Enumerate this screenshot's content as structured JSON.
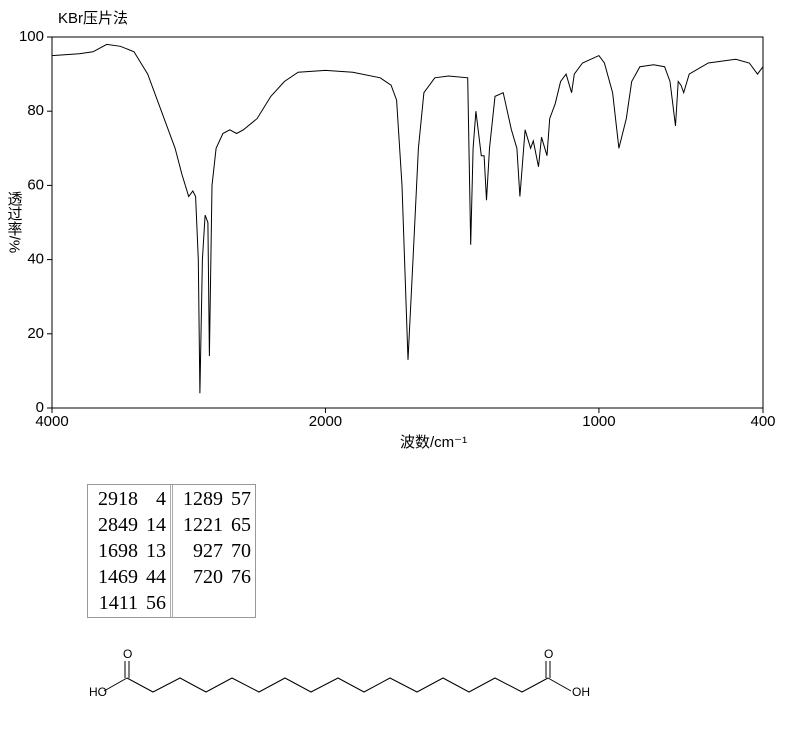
{
  "chart_data": {
    "type": "line",
    "title": "KBr压片法",
    "x_label": "波数/cm⁻¹",
    "y_label": "透过率/%",
    "x": [
      4000,
      3800,
      3700,
      3600,
      3500,
      3400,
      3300,
      3200,
      3100,
      3050,
      3000,
      2970,
      2950,
      2930,
      2918,
      2900,
      2880,
      2860,
      2849,
      2830,
      2800,
      2750,
      2700,
      2650,
      2600,
      2500,
      2400,
      2300,
      2200,
      2000,
      1900,
      1800,
      1760,
      1740,
      1720,
      1698,
      1680,
      1660,
      1640,
      1600,
      1550,
      1480,
      1469,
      1460,
      1450,
      1430,
      1420,
      1411,
      1400,
      1380,
      1350,
      1320,
      1300,
      1289,
      1270,
      1250,
      1240,
      1221,
      1210,
      1190,
      1180,
      1160,
      1140,
      1120,
      1100,
      1090,
      1060,
      1000,
      980,
      950,
      927,
      900,
      880,
      850,
      800,
      760,
      740,
      720,
      710,
      700,
      690,
      670,
      600,
      500,
      450,
      420,
      400
    ],
    "series": [
      {
        "name": "spectrum",
        "color": "#000000",
        "values": [
          95,
          95.5,
          96,
          98,
          97.5,
          96,
          90,
          80,
          70,
          63,
          57,
          58.5,
          57,
          40,
          4,
          40,
          52,
          50,
          14,
          60,
          70,
          74,
          75,
          74,
          75,
          78,
          84,
          88,
          90.5,
          91,
          90.5,
          89,
          87,
          83,
          60,
          13,
          40,
          70,
          85,
          89,
          89.5,
          89,
          44,
          70,
          80,
          68,
          68,
          56,
          70,
          84,
          85,
          75,
          70,
          57,
          75,
          70,
          72,
          65,
          73,
          68,
          78,
          82,
          88,
          90,
          85,
          90,
          93,
          95,
          93,
          85,
          70,
          78,
          88,
          92,
          92.5,
          92,
          88,
          76,
          88,
          87,
          85,
          90,
          93,
          94,
          93,
          90,
          92
        ]
      }
    ],
    "xlim": [
      4000,
      400
    ],
    "xticks": [
      4000,
      2000,
      1000,
      400
    ],
    "x_scale_break": 2000,
    "x_scale_factor": 2,
    "ylim": [
      0,
      100
    ],
    "yticks": [
      0,
      20,
      40,
      60,
      80,
      100
    ]
  },
  "peak_table": {
    "rows": [
      [
        2918,
        4
      ],
      [
        2849,
        14
      ],
      [
        1698,
        13
      ],
      [
        1469,
        44
      ],
      [
        1411,
        56
      ],
      [
        1289,
        57
      ],
      [
        1221,
        65
      ],
      [
        927,
        70
      ],
      [
        720,
        76
      ]
    ]
  },
  "structure": {
    "labels": [
      "HO",
      "O",
      "O",
      "OH"
    ]
  }
}
